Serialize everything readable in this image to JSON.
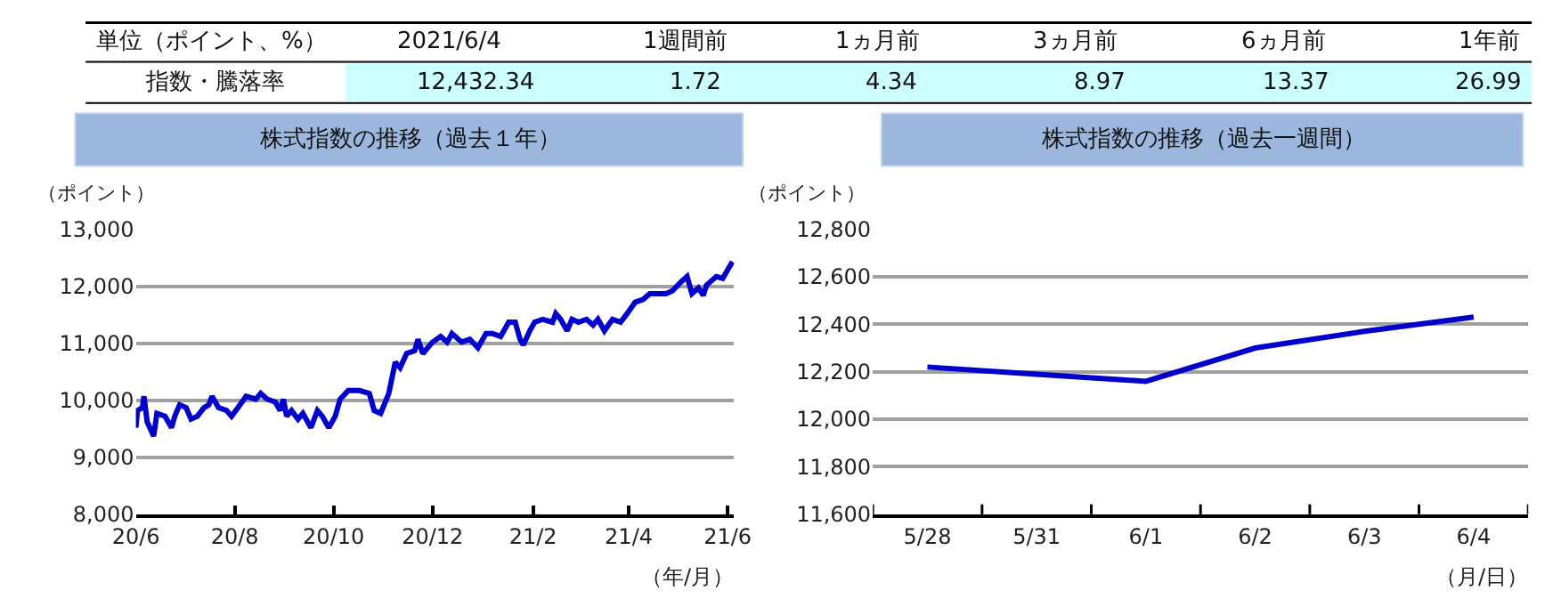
{
  "chart_data": [
    {
      "type": "other",
      "ylabel": "単位（ポイント、%）",
      "categories": [
        "2021/6/4",
        "1週間前",
        "1ヵ月前",
        "3ヵ月前",
        "6ヵ月前",
        "1年前"
      ],
      "y_categories": [
        "指数・騰落率"
      ],
      "color": "#ccffff",
      "values": [
        12432.34,
        1.72,
        4.34,
        8.97,
        13.37,
        26.99
      ],
      "value_labels": [
        "12,432.34",
        "1.72",
        "4.34",
        "8.97",
        "13.37",
        "26.99"
      ]
    },
    {
      "type": "line",
      "title": "株式指数の推移（過去１年）",
      "ylabel": "（ポイント）",
      "xlabel": "（年/月）",
      "grid": "y",
      "x": [
        "2020-06-01",
        "2020-06-02",
        "2020-06-05",
        "2020-06-06",
        "2020-06-08",
        "2020-06-12",
        "2020-06-14",
        "2020-06-19",
        "2020-06-23",
        "2020-06-25",
        "2020-06-28",
        "2020-07-02",
        "2020-07-05",
        "2020-07-09",
        "2020-07-13",
        "2020-07-16",
        "2020-07-18",
        "2020-07-22",
        "2020-07-27",
        "2020-07-30",
        "2020-08-03",
        "2020-08-08",
        "2020-08-14",
        "2020-08-17",
        "2020-08-21",
        "2020-08-26",
        "2020-08-29",
        "2020-08-31",
        "2020-09-02",
        "2020-09-05",
        "2020-09-09",
        "2020-09-12",
        "2020-09-17",
        "2020-09-21",
        "2020-09-24",
        "2020-09-28",
        "2020-10-02",
        "2020-10-05",
        "2020-10-10",
        "2020-10-17",
        "2020-10-23",
        "2020-10-26",
        "2020-10-30",
        "2020-11-04",
        "2020-11-08",
        "2020-11-11",
        "2020-11-15",
        "2020-11-20",
        "2020-11-22",
        "2020-11-25",
        "2020-12-01",
        "2020-12-06",
        "2020-12-10",
        "2020-12-13",
        "2020-12-19",
        "2020-12-24",
        "2020-12-29",
        "2021-01-03",
        "2021-01-07",
        "2021-01-12",
        "2021-01-17",
        "2021-01-21",
        "2021-01-24",
        "2021-01-26",
        "2021-01-30",
        "2021-02-02",
        "2021-02-07",
        "2021-02-13",
        "2021-02-15",
        "2021-02-18",
        "2021-02-22",
        "2021-02-25",
        "2021-03-01",
        "2021-03-06",
        "2021-03-10",
        "2021-03-13",
        "2021-03-17",
        "2021-03-22",
        "2021-03-27",
        "2021-03-31",
        "2021-04-05",
        "2021-04-10",
        "2021-04-14",
        "2021-04-19",
        "2021-04-24",
        "2021-04-28",
        "2021-05-03",
        "2021-05-07",
        "2021-05-10",
        "2021-05-14",
        "2021-05-17",
        "2021-05-19",
        "2021-05-25",
        "2021-05-29",
        "2021-06-04"
      ],
      "series": [
        {
          "color": "#0000cc",
          "values": [
            9520,
            9820,
            9870,
            10070,
            9620,
            9370,
            9770,
            9720,
            9520,
            9720,
            9920,
            9870,
            9670,
            9720,
            9870,
            9920,
            10070,
            9870,
            9820,
            9720,
            9870,
            10070,
            10020,
            10120,
            10020,
            9970,
            9820,
            10020,
            9720,
            9820,
            9670,
            9770,
            9520,
            9820,
            9720,
            9520,
            9720,
            10020,
            10170,
            10170,
            10120,
            9820,
            9770,
            10120,
            10670,
            10570,
            10820,
            10870,
            11070,
            10820,
            11020,
            11120,
            11020,
            11170,
            11020,
            11070,
            10920,
            11170,
            11170,
            11120,
            11370,
            11370,
            11070,
            10970,
            11220,
            11370,
            11420,
            11370,
            11520,
            11420,
            11220,
            11420,
            11370,
            11420,
            11320,
            11420,
            11220,
            11420,
            11370,
            11520,
            11720,
            11770,
            11870,
            11870,
            11870,
            11920,
            12070,
            12170,
            11870,
            11970,
            11840,
            12020,
            12170,
            12140,
            12430
          ]
        }
      ],
      "xlim": [
        "2020-06-01",
        "2021-06-05"
      ],
      "xticks": [
        {
          "value": "2020-06-01",
          "label": "20/6"
        },
        {
          "value": "2020-08-01",
          "label": "20/8"
        },
        {
          "value": "2020-10-01",
          "label": "20/10"
        },
        {
          "value": "2020-12-01",
          "label": "20/12"
        },
        {
          "value": "2021-02-01",
          "label": "21/2"
        },
        {
          "value": "2021-04-01",
          "label": "21/4"
        },
        {
          "value": "2021-06-01",
          "label": "21/6"
        }
      ],
      "ylim": [
        8000,
        13000
      ],
      "yticks": [
        {
          "value": 8000,
          "label": "8,000"
        },
        {
          "value": 9000,
          "label": "9,000"
        },
        {
          "value": 10000,
          "label": "10,000"
        },
        {
          "value": 11000,
          "label": "11,000"
        },
        {
          "value": 12000,
          "label": "12,000"
        },
        {
          "value": 13000,
          "label": "13,000"
        }
      ]
    },
    {
      "type": "line",
      "title": "株式指数の推移（過去一週間）",
      "ylabel": "（ポイント）",
      "xlabel": "（月/日）",
      "grid": "y",
      "categories": [
        "5/28",
        "5/31",
        "6/1",
        "6/2",
        "6/3",
        "6/4"
      ],
      "series": [
        {
          "color": "#0000cc",
          "values": [
            12220,
            12190,
            12160,
            12300,
            12370,
            12430
          ]
        }
      ],
      "ylim": [
        11600,
        12800
      ],
      "yticks": [
        {
          "value": 11600,
          "label": "11,600"
        },
        {
          "value": 11800,
          "label": "11,800"
        },
        {
          "value": 12000,
          "label": "12,000"
        },
        {
          "value": 12200,
          "label": "12,200"
        },
        {
          "value": 12400,
          "label": "12,400"
        },
        {
          "value": 12600,
          "label": "12,600"
        },
        {
          "value": 12800,
          "label": "12,800"
        }
      ]
    }
  ]
}
